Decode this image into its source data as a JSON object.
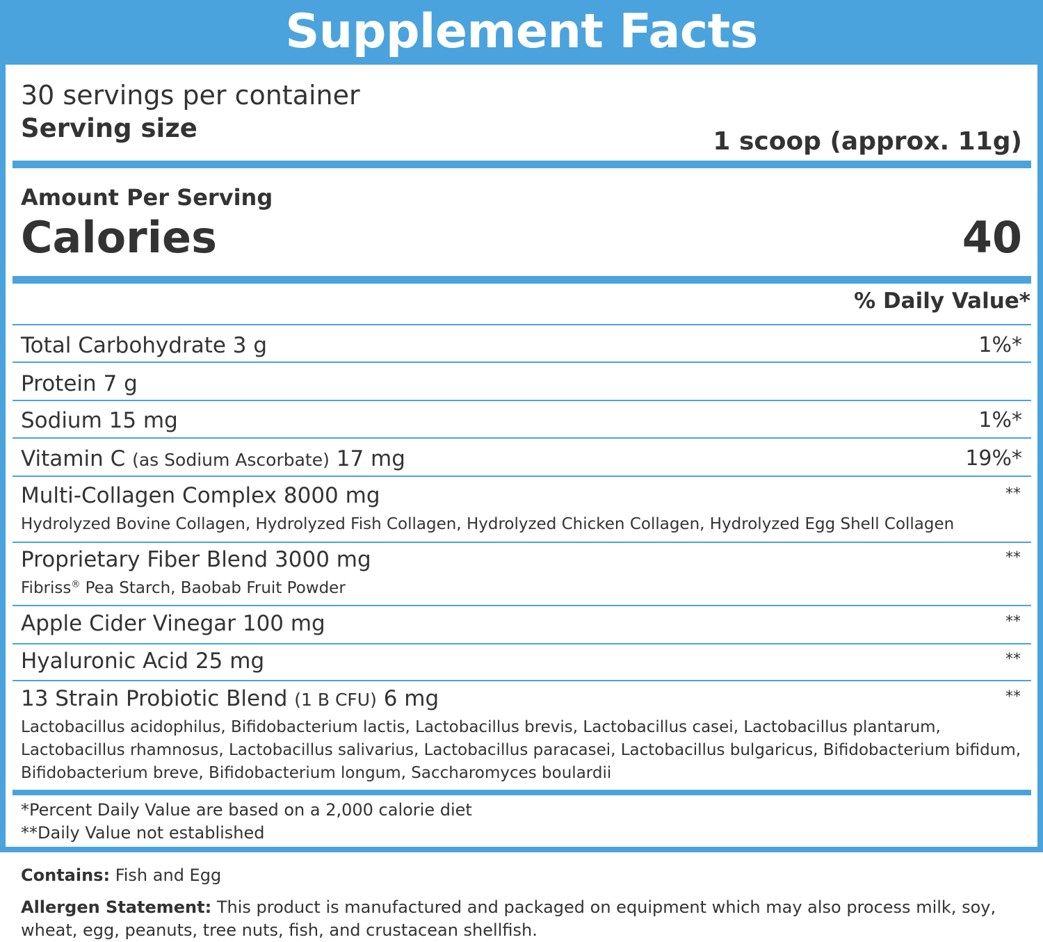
{
  "title": "Supplement Facts",
  "servings_per_container": "30 servings per container",
  "serving_size_label": "Serving size",
  "serving_size_value": "1 scoop (approx. 11g)",
  "amount_per_serving": "Amount Per Serving",
  "calories_label": "Calories",
  "calories_value": "40",
  "daily_value_header": "% Daily Value*",
  "rows": [
    {
      "name": "Total Carbohydrate 3 g",
      "dv": "1%*"
    },
    {
      "name": "Protein 7 g",
      "dv": ""
    },
    {
      "name": "Sodium 15 mg",
      "dv": "1%*"
    },
    {
      "name_pre": "Vitamin C",
      "name_note": "(as Sodium Ascorbate)",
      "name_post": "17 mg",
      "dv": "19%*"
    },
    {
      "name": "Multi-Collagen Complex 8000 mg",
      "dv": "**",
      "detail": "Hydrolyzed Bovine Collagen, Hydrolyzed Fish Collagen, Hydrolyzed Chicken Collagen, Hydrolyzed Egg Shell Collagen"
    },
    {
      "name": "Proprietary Fiber Blend 3000 mg",
      "dv": "**",
      "detail_pre": "Fibriss",
      "detail_mark": "®",
      "detail_post": "Pea Starch, Baobab Fruit Powder"
    },
    {
      "name": "Apple Cider Vinegar 100 mg",
      "dv": "**"
    },
    {
      "name": "Hyaluronic Acid 25 mg",
      "dv": "**"
    },
    {
      "name_pre": "13 Strain Probiotic Blend",
      "name_note": "(1 B CFU)",
      "name_post": "6 mg",
      "dv": "**",
      "detail_lines": [
        "Lactobacillus acidophilus, Bifidobacterium lactis, Lactobacillus brevis, Lactobacillus casei, Lactobacillus plantarum,",
        "Lactobacillus rhamnosus, Lactobacillus salivarius, Lactobacillus paracasei, Lactobacillus bulgaricus, Bifidobacterium bifidum,",
        "Bifidobacterium breve, Bifidobacterium longum, Saccharomyces boulardii"
      ]
    }
  ],
  "footnotes": [
    "*Percent Daily Value are based on a 2,000 calorie diet",
    "**Daily Value not established"
  ],
  "contains_label": "Contains:",
  "contains_text": "Fish and Egg",
  "allergen_label": "Allergen Statement:",
  "allergen_text": "This product is manufactured and packaged on equipment which may also process milk, soy, wheat, egg, peanuts, tree nuts, fish, and crustacean shellfish.",
  "colors": {
    "accent": "#4aa3dc",
    "text": "#333333"
  }
}
